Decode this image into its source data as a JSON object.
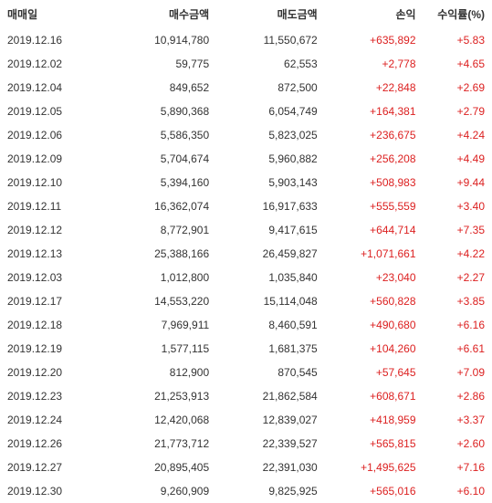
{
  "table": {
    "headers": {
      "date": "매매일",
      "buy": "매수금액",
      "sell": "매도금액",
      "profit": "손익",
      "rate": "수익률(%)"
    },
    "rows": [
      {
        "date": "2019.12.16",
        "buy": "10,914,780",
        "sell": "11,550,672",
        "profit": "+635,892",
        "rate": "+5.83"
      },
      {
        "date": "2019.12.02",
        "buy": "59,775",
        "sell": "62,553",
        "profit": "+2,778",
        "rate": "+4.65"
      },
      {
        "date": "2019.12.04",
        "buy": "849,652",
        "sell": "872,500",
        "profit": "+22,848",
        "rate": "+2.69"
      },
      {
        "date": "2019.12.05",
        "buy": "5,890,368",
        "sell": "6,054,749",
        "profit": "+164,381",
        "rate": "+2.79"
      },
      {
        "date": "2019.12.06",
        "buy": "5,586,350",
        "sell": "5,823,025",
        "profit": "+236,675",
        "rate": "+4.24"
      },
      {
        "date": "2019.12.09",
        "buy": "5,704,674",
        "sell": "5,960,882",
        "profit": "+256,208",
        "rate": "+4.49"
      },
      {
        "date": "2019.12.10",
        "buy": "5,394,160",
        "sell": "5,903,143",
        "profit": "+508,983",
        "rate": "+9.44"
      },
      {
        "date": "2019.12.11",
        "buy": "16,362,074",
        "sell": "16,917,633",
        "profit": "+555,559",
        "rate": "+3.40"
      },
      {
        "date": "2019.12.12",
        "buy": "8,772,901",
        "sell": "9,417,615",
        "profit": "+644,714",
        "rate": "+7.35"
      },
      {
        "date": "2019.12.13",
        "buy": "25,388,166",
        "sell": "26,459,827",
        "profit": "+1,071,661",
        "rate": "+4.22"
      },
      {
        "date": "2019.12.03",
        "buy": "1,012,800",
        "sell": "1,035,840",
        "profit": "+23,040",
        "rate": "+2.27"
      },
      {
        "date": "2019.12.17",
        "buy": "14,553,220",
        "sell": "15,114,048",
        "profit": "+560,828",
        "rate": "+3.85"
      },
      {
        "date": "2019.12.18",
        "buy": "7,969,911",
        "sell": "8,460,591",
        "profit": "+490,680",
        "rate": "+6.16"
      },
      {
        "date": "2019.12.19",
        "buy": "1,577,115",
        "sell": "1,681,375",
        "profit": "+104,260",
        "rate": "+6.61"
      },
      {
        "date": "2019.12.20",
        "buy": "812,900",
        "sell": "870,545",
        "profit": "+57,645",
        "rate": "+7.09"
      },
      {
        "date": "2019.12.23",
        "buy": "21,253,913",
        "sell": "21,862,584",
        "profit": "+608,671",
        "rate": "+2.86"
      },
      {
        "date": "2019.12.24",
        "buy": "12,420,068",
        "sell": "12,839,027",
        "profit": "+418,959",
        "rate": "+3.37"
      },
      {
        "date": "2019.12.26",
        "buy": "21,773,712",
        "sell": "22,339,527",
        "profit": "+565,815",
        "rate": "+2.60"
      },
      {
        "date": "2019.12.27",
        "buy": "20,895,405",
        "sell": "22,391,030",
        "profit": "+1,495,625",
        "rate": "+7.16"
      },
      {
        "date": "2019.12.30",
        "buy": "9,260,909",
        "sell": "9,825,925",
        "profit": "+565,016",
        "rate": "+6.10"
      }
    ]
  },
  "colors": {
    "text": "#333333",
    "positive": "#dc2020",
    "background": "#ffffff"
  }
}
